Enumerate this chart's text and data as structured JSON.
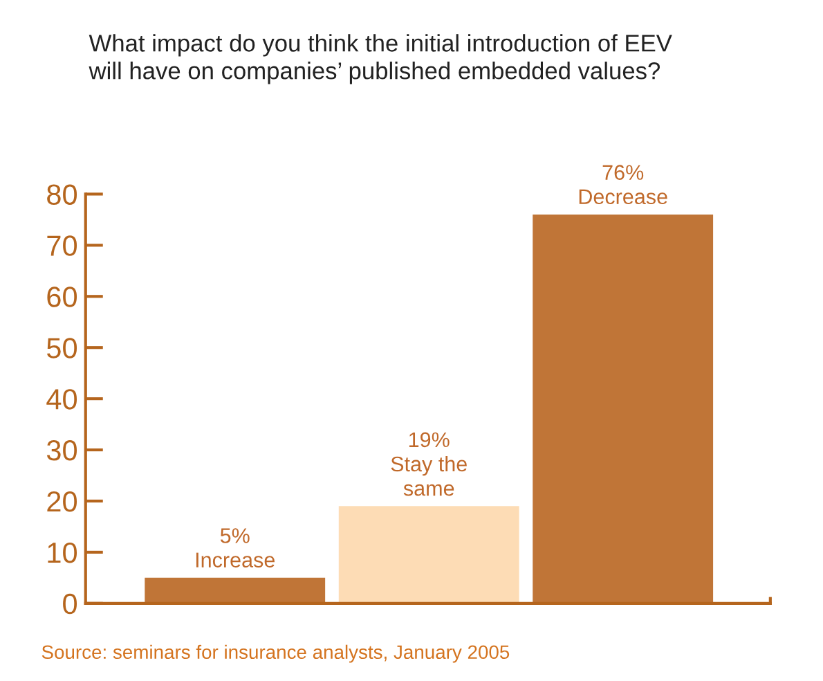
{
  "chart_data": {
    "type": "bar",
    "title": "What impact do you think the initial introduction of EEV\nwill have on companies’ published embedded values?",
    "categories": [
      "Increase",
      "Stay the\nsame",
      "Decrease"
    ],
    "values": [
      5,
      19,
      76
    ],
    "colors": [
      "#c07537",
      "#fddcb5",
      "#c07537"
    ],
    "value_labels": [
      "5%",
      "19%",
      "76%"
    ],
    "ylim": [
      0,
      80
    ],
    "yticks": [
      0,
      10,
      20,
      30,
      40,
      50,
      60,
      70,
      80
    ],
    "tick_labels": "y",
    "grid": false,
    "legend": false,
    "annotations": [
      "Source: seminars for insurance analysts, January 2005"
    ]
  }
}
